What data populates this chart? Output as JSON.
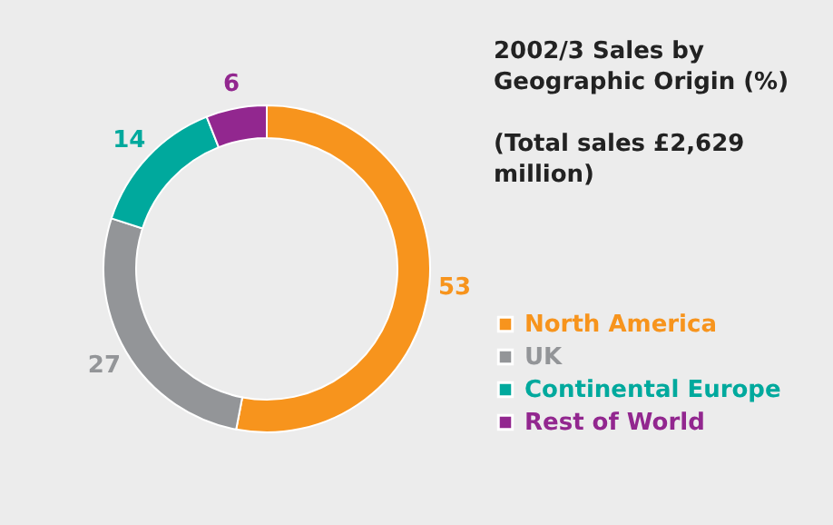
{
  "chart_data": {
    "type": "donut",
    "title": "2002/3 Sales by Geographic Origin (%)",
    "subtitle": "(Total sales £2,629 million)",
    "categories": [
      "North America",
      "UK",
      "Continental Europe",
      "Rest of World"
    ],
    "values": [
      53,
      27,
      14,
      6
    ],
    "colors": [
      "#f7941d",
      "#939598",
      "#00a99d",
      "#92278f"
    ],
    "data_labels": true,
    "legend": "bottom right"
  }
}
